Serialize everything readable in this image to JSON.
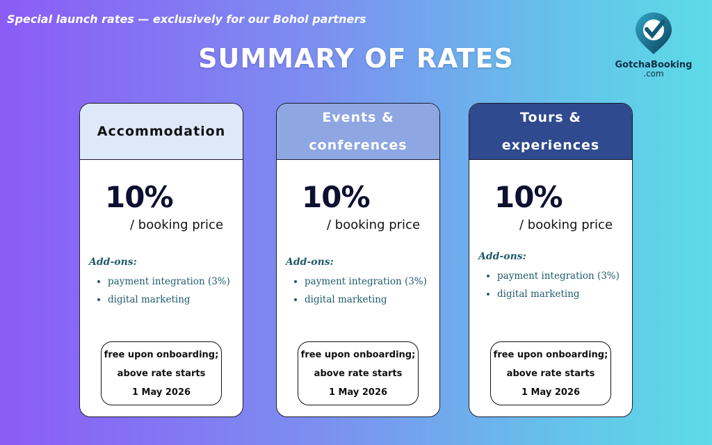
{
  "header": {
    "tagline": "Special launch rates — exclusively for our Bohol partners",
    "title": "SUMMARY OF RATES"
  },
  "logo": {
    "name": "GotchaBooking",
    "suffix": ".com"
  },
  "cards": [
    {
      "title": "Accommodation",
      "rate": "10%",
      "rate_unit": "/ booking price",
      "addons_label": "Add-ons:",
      "addons": [
        "payment integration (3%)",
        "digital marketing"
      ],
      "note_lines": [
        "free upon onboarding;",
        "above rate starts",
        "1 May 2026"
      ]
    },
    {
      "title": "Events & conferences",
      "rate": "10%",
      "rate_unit": "/ booking price",
      "addons_label": "Add-ons:",
      "addons": [
        "payment integration (3%)",
        "digital marketing"
      ],
      "note_lines": [
        "free upon onboarding;",
        "above rate starts",
        "1 May 2026"
      ]
    },
    {
      "title": "Tours & experiences",
      "rate": "10%",
      "rate_unit": "/ booking price",
      "addons_label": "Add-ons:",
      "addons": [
        "payment integration (3%)",
        "digital marketing"
      ],
      "note_lines": [
        "free upon onboarding;",
        "above rate starts",
        "1 May 2026"
      ]
    }
  ]
}
